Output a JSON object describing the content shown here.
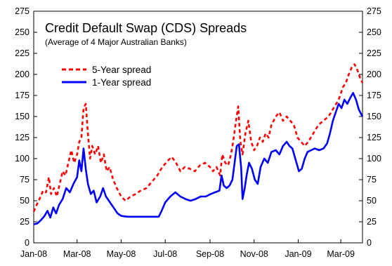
{
  "chart_data": {
    "type": "line",
    "title": "Credit Default Swap (CDS) Spreads",
    "subtitle": "(Average of 4 Major Australian Banks)",
    "xlabel": "",
    "ylabel": "",
    "ylim": [
      0,
      275
    ],
    "y_ticks": [
      "0",
      "25",
      "50",
      "75",
      "100",
      "125",
      "150",
      "175",
      "200",
      "225",
      "250",
      "275"
    ],
    "x_tick_labels": [
      "Jan-08",
      "Mar-08",
      "May-08",
      "Jul-08",
      "Sep-08",
      "Nov-08",
      "Jan-09",
      "Mar-09"
    ],
    "x_tick_dates": [
      "2008-01-01",
      "2008-03-01",
      "2008-05-01",
      "2008-07-01",
      "2008-09-01",
      "2008-11-01",
      "2009-01-01",
      "2009-03-01"
    ],
    "xlim": [
      "2008-01-01",
      "2009-03-31"
    ],
    "grid": false,
    "legend_position": "top-left",
    "series": [
      {
        "name": "5-Year spread",
        "color": "#ff0000",
        "style": "dashed",
        "points": [
          [
            "2008-01-01",
            37
          ],
          [
            "2008-01-05",
            45
          ],
          [
            "2008-01-09",
            52
          ],
          [
            "2008-01-14",
            62
          ],
          [
            "2008-01-18",
            60
          ],
          [
            "2008-01-22",
            78
          ],
          [
            "2008-01-25",
            58
          ],
          [
            "2008-01-29",
            65
          ],
          [
            "2008-02-02",
            55
          ],
          [
            "2008-02-06",
            70
          ],
          [
            "2008-02-10",
            85
          ],
          [
            "2008-02-14",
            80
          ],
          [
            "2008-02-18",
            95
          ],
          [
            "2008-02-22",
            110
          ],
          [
            "2008-02-26",
            95
          ],
          [
            "2008-03-01",
            105
          ],
          [
            "2008-03-04",
            120
          ],
          [
            "2008-03-07",
            125
          ],
          [
            "2008-03-10",
            160
          ],
          [
            "2008-03-13",
            165
          ],
          [
            "2008-03-16",
            130
          ],
          [
            "2008-03-19",
            100
          ],
          [
            "2008-03-22",
            115
          ],
          [
            "2008-03-26",
            105
          ],
          [
            "2008-03-30",
            115
          ],
          [
            "2008-04-03",
            95
          ],
          [
            "2008-04-07",
            105
          ],
          [
            "2008-04-11",
            85
          ],
          [
            "2008-04-15",
            90
          ],
          [
            "2008-04-20",
            75
          ],
          [
            "2008-04-25",
            65
          ],
          [
            "2008-05-01",
            55
          ],
          [
            "2008-05-07",
            50
          ],
          [
            "2008-05-14",
            55
          ],
          [
            "2008-05-21",
            58
          ],
          [
            "2008-05-28",
            62
          ],
          [
            "2008-06-05",
            65
          ],
          [
            "2008-06-12",
            72
          ],
          [
            "2008-06-20",
            80
          ],
          [
            "2008-06-27",
            90
          ],
          [
            "2008-07-04",
            97
          ],
          [
            "2008-07-10",
            102
          ],
          [
            "2008-07-16",
            95
          ],
          [
            "2008-07-22",
            85
          ],
          [
            "2008-07-28",
            90
          ],
          [
            "2008-08-04",
            88
          ],
          [
            "2008-08-11",
            85
          ],
          [
            "2008-08-18",
            92
          ],
          [
            "2008-08-25",
            95
          ],
          [
            "2008-09-01",
            90
          ],
          [
            "2008-09-05",
            85
          ],
          [
            "2008-09-10",
            90
          ],
          [
            "2008-09-15",
            80
          ],
          [
            "2008-09-18",
            105
          ],
          [
            "2008-09-22",
            95
          ],
          [
            "2008-09-26",
            92
          ],
          [
            "2008-09-30",
            105
          ],
          [
            "2008-10-03",
            120
          ],
          [
            "2008-10-07",
            145
          ],
          [
            "2008-10-10",
            162
          ],
          [
            "2008-10-13",
            120
          ],
          [
            "2008-10-16",
            105
          ],
          [
            "2008-10-20",
            130
          ],
          [
            "2008-10-24",
            145
          ],
          [
            "2008-10-28",
            120
          ],
          [
            "2008-11-01",
            110
          ],
          [
            "2008-11-05",
            115
          ],
          [
            "2008-11-09",
            125
          ],
          [
            "2008-11-13",
            120
          ],
          [
            "2008-11-17",
            130
          ],
          [
            "2008-11-21",
            125
          ],
          [
            "2008-11-25",
            140
          ],
          [
            "2008-12-01",
            150
          ],
          [
            "2008-12-06",
            155
          ],
          [
            "2008-12-11",
            145
          ],
          [
            "2008-12-16",
            150
          ],
          [
            "2008-12-21",
            145
          ],
          [
            "2008-12-26",
            140
          ],
          [
            "2008-12-31",
            125
          ],
          [
            "2009-01-05",
            120
          ],
          [
            "2009-01-10",
            115
          ],
          [
            "2009-01-15",
            120
          ],
          [
            "2009-01-22",
            130
          ],
          [
            "2009-01-29",
            140
          ],
          [
            "2009-02-05",
            145
          ],
          [
            "2009-02-12",
            150
          ],
          [
            "2009-02-19",
            160
          ],
          [
            "2009-02-26",
            170
          ],
          [
            "2009-03-04",
            185
          ],
          [
            "2009-03-08",
            190
          ],
          [
            "2009-03-12",
            200
          ],
          [
            "2009-03-16",
            208
          ],
          [
            "2009-03-20",
            212
          ],
          [
            "2009-03-24",
            205
          ],
          [
            "2009-03-28",
            195
          ],
          [
            "2009-03-31",
            190
          ]
        ]
      },
      {
        "name": "1-Year spread",
        "color": "#0000ff",
        "style": "solid",
        "points": [
          [
            "2008-01-01",
            22
          ],
          [
            "2008-01-06",
            23
          ],
          [
            "2008-01-11",
            27
          ],
          [
            "2008-01-16",
            32
          ],
          [
            "2008-01-20",
            38
          ],
          [
            "2008-01-24",
            30
          ],
          [
            "2008-01-28",
            42
          ],
          [
            "2008-02-01",
            35
          ],
          [
            "2008-02-05",
            45
          ],
          [
            "2008-02-10",
            52
          ],
          [
            "2008-02-15",
            65
          ],
          [
            "2008-02-20",
            60
          ],
          [
            "2008-02-25",
            70
          ],
          [
            "2008-03-01",
            78
          ],
          [
            "2008-03-04",
            98
          ],
          [
            "2008-03-07",
            85
          ],
          [
            "2008-03-10",
            112
          ],
          [
            "2008-03-13",
            88
          ],
          [
            "2008-03-16",
            70
          ],
          [
            "2008-03-20",
            58
          ],
          [
            "2008-03-24",
            62
          ],
          [
            "2008-03-28",
            48
          ],
          [
            "2008-04-02",
            55
          ],
          [
            "2008-04-06",
            65
          ],
          [
            "2008-04-10",
            55
          ],
          [
            "2008-04-14",
            50
          ],
          [
            "2008-04-18",
            45
          ],
          [
            "2008-04-22",
            40
          ],
          [
            "2008-04-26",
            35
          ],
          [
            "2008-05-01",
            32
          ],
          [
            "2008-05-10",
            31
          ],
          [
            "2008-05-20",
            31
          ],
          [
            "2008-06-01",
            31
          ],
          [
            "2008-06-12",
            31
          ],
          [
            "2008-06-22",
            31
          ],
          [
            "2008-06-26",
            38
          ],
          [
            "2008-07-01",
            48
          ],
          [
            "2008-07-08",
            55
          ],
          [
            "2008-07-15",
            60
          ],
          [
            "2008-07-22",
            55
          ],
          [
            "2008-07-29",
            52
          ],
          [
            "2008-08-05",
            50
          ],
          [
            "2008-08-12",
            52
          ],
          [
            "2008-08-19",
            55
          ],
          [
            "2008-08-26",
            55
          ],
          [
            "2008-09-02",
            58
          ],
          [
            "2008-09-08",
            60
          ],
          [
            "2008-09-14",
            62
          ],
          [
            "2008-09-17",
            80
          ],
          [
            "2008-09-20",
            68
          ],
          [
            "2008-09-24",
            65
          ],
          [
            "2008-09-28",
            68
          ],
          [
            "2008-10-02",
            75
          ],
          [
            "2008-10-05",
            95
          ],
          [
            "2008-10-08",
            115
          ],
          [
            "2008-10-11",
            117
          ],
          [
            "2008-10-14",
            90
          ],
          [
            "2008-10-16",
            52
          ],
          [
            "2008-10-19",
            65
          ],
          [
            "2008-10-22",
            82
          ],
          [
            "2008-10-25",
            95
          ],
          [
            "2008-10-29",
            88
          ],
          [
            "2008-11-02",
            75
          ],
          [
            "2008-11-06",
            70
          ],
          [
            "2008-11-10",
            90
          ],
          [
            "2008-11-15",
            100
          ],
          [
            "2008-11-20",
            95
          ],
          [
            "2008-11-25",
            108
          ],
          [
            "2008-12-01",
            110
          ],
          [
            "2008-12-06",
            105
          ],
          [
            "2008-12-11",
            115
          ],
          [
            "2008-12-16",
            120
          ],
          [
            "2008-12-20",
            115
          ],
          [
            "2008-12-24",
            112
          ],
          [
            "2008-12-28",
            100
          ],
          [
            "2009-01-02",
            85
          ],
          [
            "2009-01-06",
            88
          ],
          [
            "2009-01-10",
            100
          ],
          [
            "2009-01-14",
            108
          ],
          [
            "2009-01-19",
            110
          ],
          [
            "2009-01-24",
            112
          ],
          [
            "2009-01-30",
            110
          ],
          [
            "2009-02-05",
            112
          ],
          [
            "2009-02-10",
            118
          ],
          [
            "2009-02-14",
            130
          ],
          [
            "2009-02-18",
            145
          ],
          [
            "2009-02-22",
            155
          ],
          [
            "2009-02-26",
            165
          ],
          [
            "2009-03-02",
            160
          ],
          [
            "2009-03-06",
            170
          ],
          [
            "2009-03-10",
            165
          ],
          [
            "2009-03-14",
            172
          ],
          [
            "2009-03-18",
            178
          ],
          [
            "2009-03-22",
            170
          ],
          [
            "2009-03-26",
            158
          ],
          [
            "2009-03-31",
            150
          ]
        ]
      }
    ]
  }
}
